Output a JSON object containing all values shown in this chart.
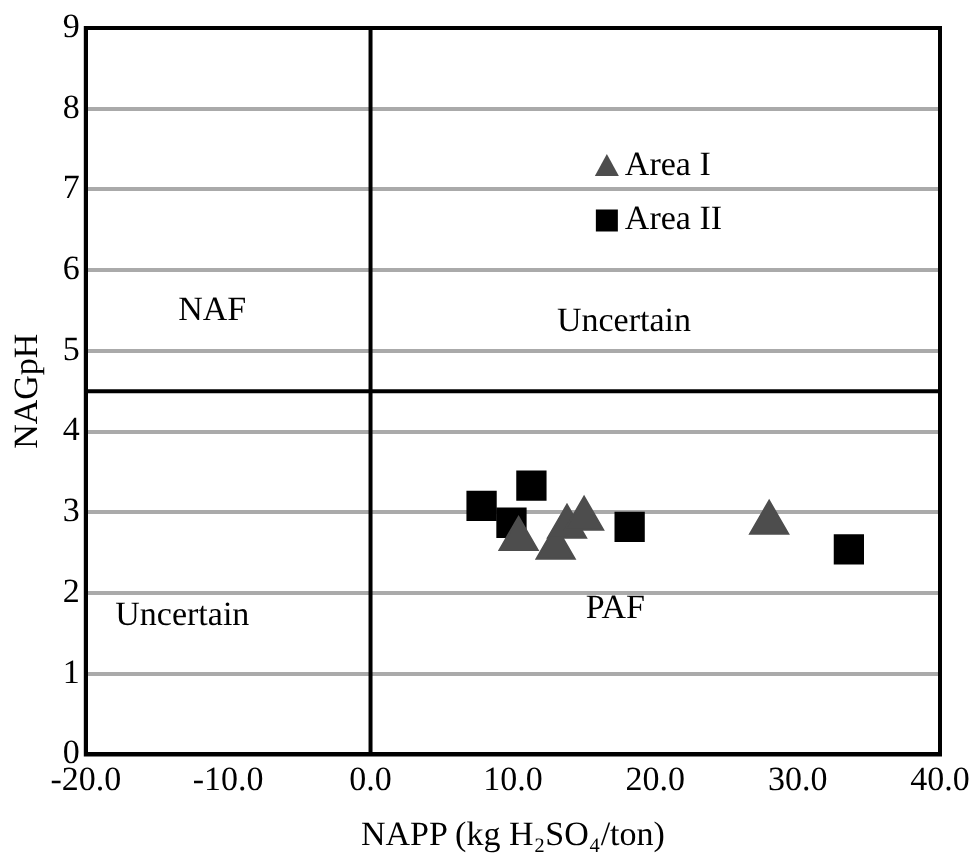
{
  "chart_data": {
    "type": "scatter",
    "xlabel": "NAPP (kg H₂SO₄/ton)",
    "ylabel": "NAGpH",
    "xlim": [
      -20,
      40
    ],
    "xticks": [
      {
        "value": -20,
        "label": "-20.0"
      },
      {
        "value": -10,
        "label": "-10.0"
      },
      {
        "value": 0,
        "label": "0.0"
      },
      {
        "value": 10,
        "label": "10.0"
      },
      {
        "value": 20,
        "label": "20.0"
      },
      {
        "value": 30,
        "label": "30.0"
      },
      {
        "value": 40,
        "label": "40.0"
      }
    ],
    "ylim": [
      0,
      9
    ],
    "yticks": [
      0,
      1,
      2,
      3,
      4,
      5,
      6,
      7,
      8,
      9
    ],
    "grid": "y",
    "legend": "top right",
    "ref_lines": [
      {
        "axis": "x",
        "value": 0,
        "color": "#000000"
      },
      {
        "axis": "y",
        "value": 4.5,
        "color": "#000000"
      }
    ],
    "annotations": [
      "NAF",
      "Uncertain",
      "Uncertain",
      "PAF"
    ],
    "series": [
      {
        "name": "Area I",
        "color": "#4d4d4d",
        "marker": "triangle",
        "x": [
          10.4,
          13.0,
          13.8,
          15.0,
          28.0
        ],
        "values": [
          2.67,
          2.56,
          2.82,
          2.92,
          2.87
        ]
      },
      {
        "name": "Area II",
        "color": "#000000",
        "marker": "square",
        "x": [
          7.8,
          9.9,
          11.3,
          18.2,
          33.6
        ],
        "values": [
          3.08,
          2.87,
          3.33,
          2.82,
          2.54
        ]
      }
    ]
  }
}
